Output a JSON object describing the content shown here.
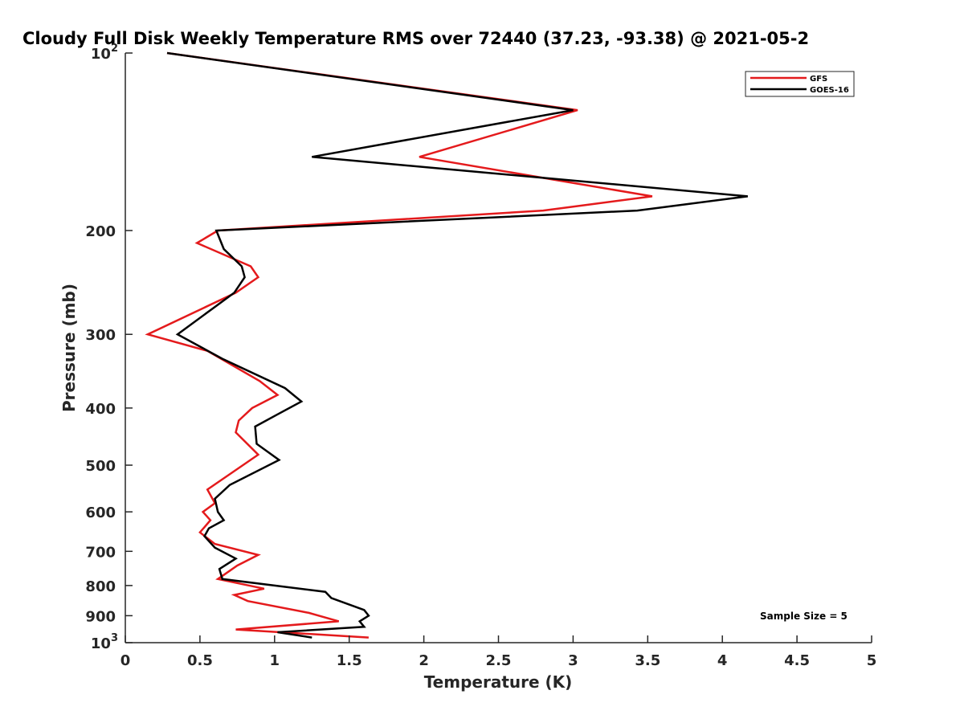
{
  "chart_data": {
    "type": "line",
    "title": "Cloudy Full Disk Weekly Temperature RMS over 72440 (37.23, -93.38) @ 2021-05-2",
    "xlabel": "Temperature (K)",
    "ylabel": "Pressure (mb)",
    "xlim": [
      0,
      5
    ],
    "ylim": [
      100,
      1000
    ],
    "y_scale": "log",
    "y_reversed": true,
    "x_ticks": [
      0,
      0.5,
      1,
      1.5,
      2,
      2.5,
      3,
      3.5,
      4,
      4.5,
      5
    ],
    "x_tick_labels": [
      "0",
      "0.5",
      "1",
      "1.5",
      "2",
      "2.5",
      "3",
      "3.5",
      "4",
      "4.5",
      "5"
    ],
    "y_ticks": [
      {
        "value": 100,
        "base": "10",
        "exp": "2"
      },
      {
        "value": 200,
        "label": "200"
      },
      {
        "value": 300,
        "label": "300"
      },
      {
        "value": 400,
        "label": "400"
      },
      {
        "value": 500,
        "label": "500"
      },
      {
        "value": 600,
        "label": "600"
      },
      {
        "value": 700,
        "label": "700"
      },
      {
        "value": 800,
        "label": "800"
      },
      {
        "value": 900,
        "label": "900"
      },
      {
        "value": 1000,
        "base": "10",
        "exp": "3"
      }
    ],
    "grid": false,
    "legend_position": "top-right",
    "annotation": "Sample Size = 5",
    "series": [
      {
        "name": "GFS",
        "color": "#e41a1c",
        "points": [
          [
            0.28,
            100
          ],
          [
            3.03,
            125
          ],
          [
            1.97,
            150
          ],
          [
            3.53,
            175
          ],
          [
            2.8,
            185
          ],
          [
            0.62,
            200
          ],
          [
            0.48,
            210
          ],
          [
            0.84,
            230
          ],
          [
            0.89,
            240
          ],
          [
            0.74,
            255
          ],
          [
            0.15,
            300
          ],
          [
            0.55,
            320
          ],
          [
            0.9,
            360
          ],
          [
            1.02,
            380
          ],
          [
            0.85,
            400
          ],
          [
            0.76,
            420
          ],
          [
            0.74,
            440
          ],
          [
            0.89,
            480
          ],
          [
            0.55,
            550
          ],
          [
            0.6,
            580
          ],
          [
            0.52,
            600
          ],
          [
            0.57,
            620
          ],
          [
            0.5,
            650
          ],
          [
            0.6,
            680
          ],
          [
            0.89,
            710
          ],
          [
            0.75,
            740
          ],
          [
            0.62,
            780
          ],
          [
            0.93,
            810
          ],
          [
            0.73,
            830
          ],
          [
            0.82,
            850
          ],
          [
            1.23,
            890
          ],
          [
            1.43,
            920
          ],
          [
            0.74,
            950
          ],
          [
            1.63,
            980
          ]
        ]
      },
      {
        "name": "GOES-16",
        "color": "#000000",
        "points": [
          [
            0.28,
            100
          ],
          [
            3.0,
            125
          ],
          [
            1.25,
            150
          ],
          [
            4.17,
            175
          ],
          [
            3.43,
            185
          ],
          [
            0.61,
            200
          ],
          [
            0.66,
            215
          ],
          [
            0.78,
            230
          ],
          [
            0.8,
            240
          ],
          [
            0.73,
            255
          ],
          [
            0.35,
            300
          ],
          [
            0.65,
            330
          ],
          [
            1.07,
            370
          ],
          [
            1.18,
            390
          ],
          [
            1.02,
            410
          ],
          [
            0.87,
            430
          ],
          [
            0.88,
            460
          ],
          [
            1.03,
            490
          ],
          [
            0.7,
            540
          ],
          [
            0.6,
            570
          ],
          [
            0.62,
            600
          ],
          [
            0.66,
            620
          ],
          [
            0.56,
            640
          ],
          [
            0.53,
            660
          ],
          [
            0.6,
            690
          ],
          [
            0.74,
            720
          ],
          [
            0.63,
            750
          ],
          [
            0.65,
            780
          ],
          [
            1.0,
            800
          ],
          [
            1.34,
            820
          ],
          [
            1.38,
            840
          ],
          [
            1.6,
            880
          ],
          [
            1.63,
            900
          ],
          [
            1.57,
            920
          ],
          [
            1.6,
            940
          ],
          [
            1.02,
            960
          ],
          [
            1.25,
            980
          ]
        ]
      }
    ]
  }
}
